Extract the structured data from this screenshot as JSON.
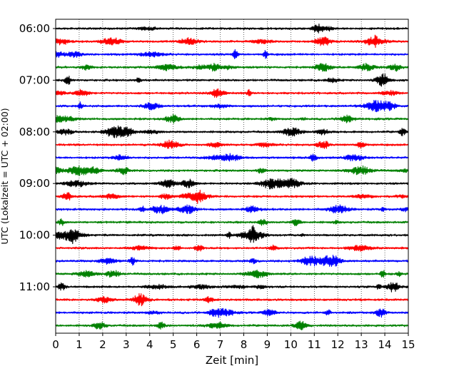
{
  "chart_data": {
    "type": "line",
    "xlabel": "Zeit  [min]",
    "ylabel": "UTC (Lokalzeit = UTC + 02:00)",
    "xlim": [
      0,
      15
    ],
    "x_ticks": [
      "0",
      "1",
      "2",
      "3",
      "4",
      "5",
      "6",
      "7",
      "8",
      "9",
      "10",
      "11",
      "12",
      "13",
      "14",
      "15"
    ],
    "y_ticks": [
      "06:00",
      "07:00",
      "08:00",
      "09:00",
      "10:00",
      "11:00"
    ],
    "grid": "vertical dotted",
    "series_colors": [
      "#000000",
      "#ff0000",
      "#0000ff",
      "#008000"
    ],
    "traces": [
      {
        "start": "06:00",
        "color": "#000000"
      },
      {
        "start": "06:15",
        "color": "#ff0000"
      },
      {
        "start": "06:30",
        "color": "#0000ff"
      },
      {
        "start": "06:45",
        "color": "#008000"
      },
      {
        "start": "07:00",
        "color": "#000000"
      },
      {
        "start": "07:15",
        "color": "#ff0000"
      },
      {
        "start": "07:30",
        "color": "#0000ff"
      },
      {
        "start": "07:45",
        "color": "#008000"
      },
      {
        "start": "08:00",
        "color": "#000000"
      },
      {
        "start": "08:15",
        "color": "#ff0000"
      },
      {
        "start": "08:30",
        "color": "#0000ff"
      },
      {
        "start": "08:45",
        "color": "#008000"
      },
      {
        "start": "09:00",
        "color": "#000000"
      },
      {
        "start": "09:15",
        "color": "#ff0000"
      },
      {
        "start": "09:30",
        "color": "#0000ff"
      },
      {
        "start": "09:45",
        "color": "#008000"
      },
      {
        "start": "10:00",
        "color": "#000000"
      },
      {
        "start": "10:15",
        "color": "#ff0000"
      },
      {
        "start": "10:30",
        "color": "#0000ff"
      },
      {
        "start": "10:45",
        "color": "#008000"
      },
      {
        "start": "11:00",
        "color": "#000000"
      },
      {
        "start": "11:15",
        "color": "#ff0000"
      },
      {
        "start": "11:30",
        "color": "#0000ff"
      },
      {
        "start": "11:45",
        "color": "#008000"
      }
    ]
  }
}
